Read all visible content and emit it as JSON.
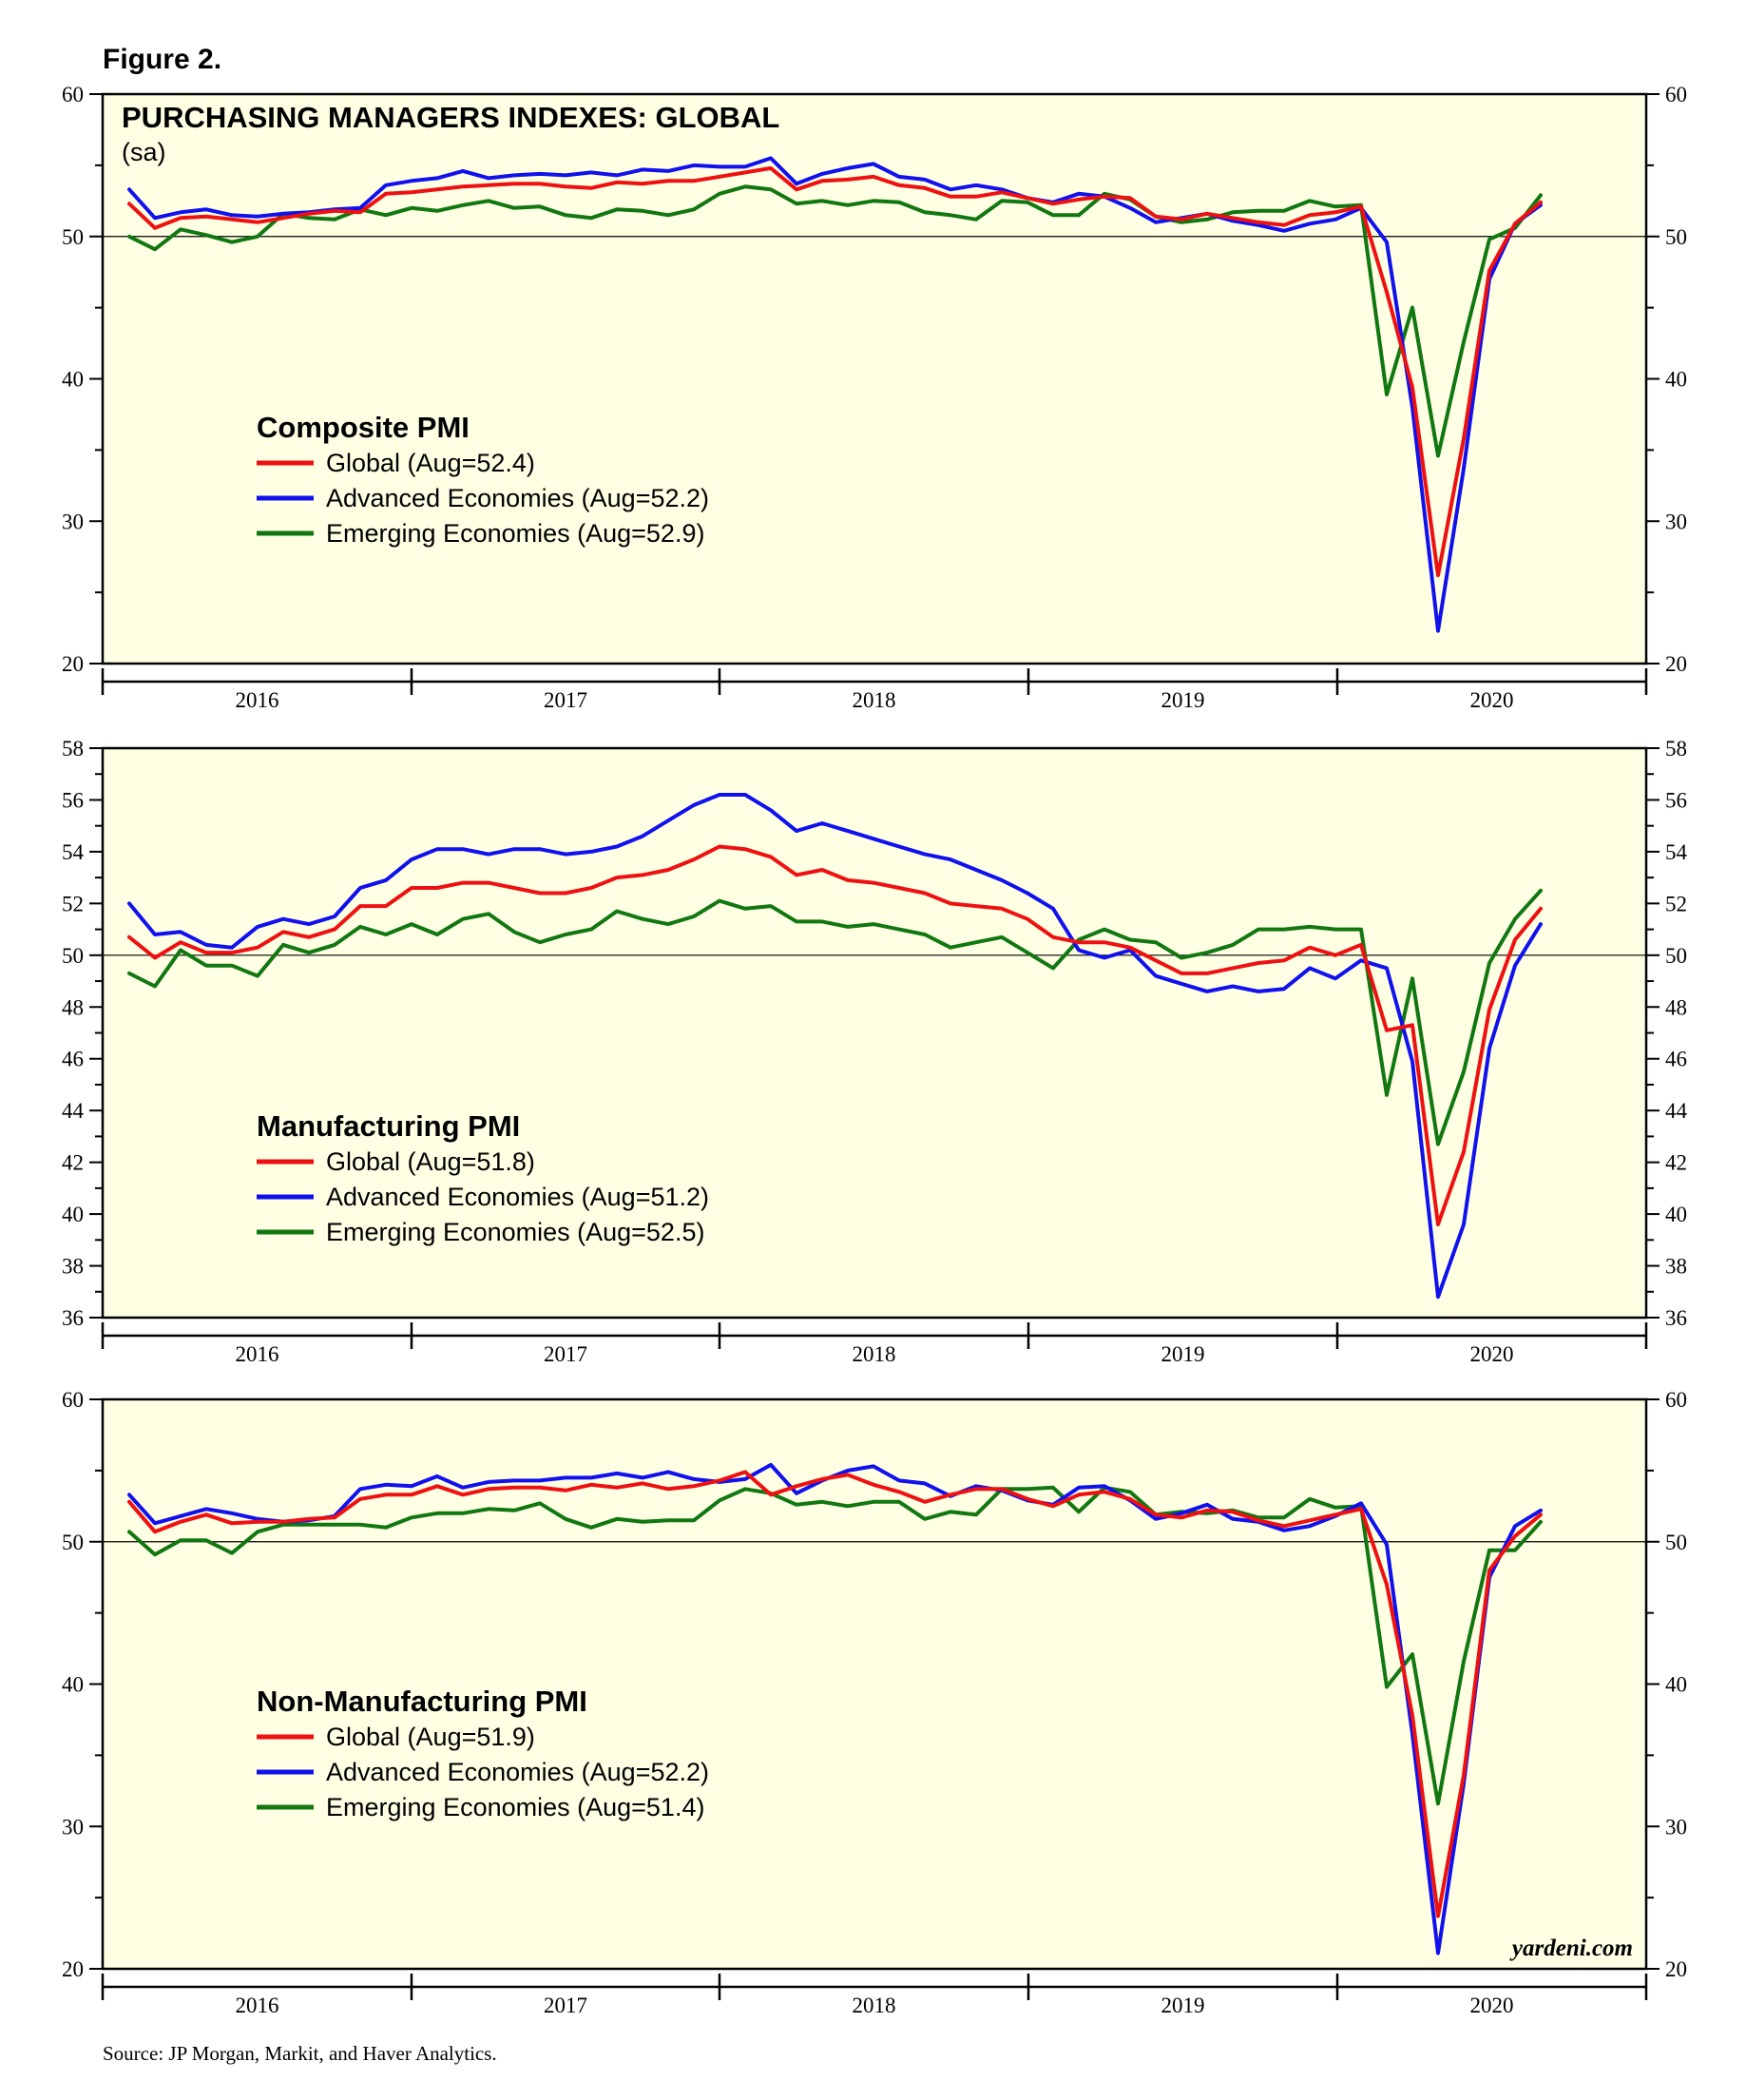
{
  "figure_label": "Figure 2.",
  "source": "Source: JP Morgan, Markit, and Haver Analytics.",
  "colors": {
    "global": "#ee1111",
    "advanced": "#1111ee",
    "emerging": "#117711",
    "panel_bg": "#ffffe4"
  },
  "chart_data": [
    {
      "type": "line",
      "title": "PURCHASING MANAGERS INDEXES: GLOBAL",
      "subtitle": "(sa)",
      "legend_title": "Composite PMI",
      "ylim": [
        20,
        60
      ],
      "yticks": [
        20,
        30,
        40,
        50,
        60
      ],
      "x_tick_labels": [
        "2016",
        "2017",
        "2018",
        "2019",
        "2020"
      ],
      "x_start": "2016-01",
      "watermark": "",
      "series": [
        {
          "name": "Global (Aug=52.4)",
          "key": "global",
          "values": [
            52.3,
            50.6,
            51.3,
            51.4,
            51.2,
            51.0,
            51.3,
            51.6,
            51.8,
            51.7,
            53.0,
            53.1,
            53.3,
            53.5,
            53.6,
            53.7,
            53.7,
            53.5,
            53.4,
            53.8,
            53.7,
            53.9,
            53.9,
            54.2,
            54.5,
            54.8,
            53.3,
            53.9,
            54.0,
            54.2,
            53.6,
            53.4,
            52.8,
            52.8,
            53.1,
            52.7,
            52.3,
            52.6,
            52.8,
            52.7,
            51.4,
            51.2,
            51.6,
            51.3,
            51.0,
            50.8,
            51.5,
            51.7,
            52.1,
            46.1,
            39.4,
            26.2,
            35.8,
            47.6,
            50.9,
            52.4
          ]
        },
        {
          "name": "Advanced Economies (Aug=52.2)",
          "key": "advanced",
          "values": [
            53.3,
            51.3,
            51.7,
            51.9,
            51.5,
            51.4,
            51.6,
            51.7,
            51.9,
            52.0,
            53.6,
            53.9,
            54.1,
            54.6,
            54.1,
            54.3,
            54.4,
            54.3,
            54.5,
            54.3,
            54.7,
            54.6,
            55.0,
            54.9,
            54.9,
            55.5,
            53.7,
            54.4,
            54.8,
            55.1,
            54.2,
            54.0,
            53.3,
            53.6,
            53.3,
            52.7,
            52.4,
            53.0,
            52.8,
            52.0,
            51.0,
            51.3,
            51.6,
            51.1,
            50.8,
            50.4,
            50.9,
            51.2,
            52.0,
            49.6,
            38.0,
            22.3,
            33.7,
            47.0,
            50.9,
            52.2
          ]
        },
        {
          "name": "Emerging Economies (Aug=52.9)",
          "key": "emerging",
          "values": [
            50.0,
            49.1,
            50.5,
            50.1,
            49.6,
            50.0,
            51.6,
            51.3,
            51.2,
            51.9,
            51.5,
            52.0,
            51.8,
            52.2,
            52.5,
            52.0,
            52.1,
            51.5,
            51.3,
            51.9,
            51.8,
            51.5,
            51.9,
            53.0,
            53.5,
            53.3,
            52.3,
            52.5,
            52.2,
            52.5,
            52.4,
            51.7,
            51.5,
            51.2,
            52.5,
            52.4,
            51.5,
            51.5,
            53.0,
            52.6,
            51.4,
            51.0,
            51.2,
            51.7,
            51.8,
            51.8,
            52.5,
            52.1,
            52.2,
            38.9,
            45.0,
            34.6,
            42.6,
            49.8,
            50.6,
            52.9
          ]
        }
      ]
    },
    {
      "type": "line",
      "title": "",
      "subtitle": "",
      "legend_title": "Manufacturing PMI",
      "ylim": [
        36,
        58
      ],
      "yticks": [
        36,
        38,
        40,
        42,
        44,
        46,
        48,
        50,
        52,
        54,
        56,
        58
      ],
      "x_tick_labels": [
        "2016",
        "2017",
        "2018",
        "2019",
        "2020"
      ],
      "x_start": "2016-01",
      "watermark": "",
      "series": [
        {
          "name": "Global (Aug=51.8)",
          "key": "global",
          "values": [
            50.7,
            49.9,
            50.5,
            50.1,
            50.1,
            50.3,
            50.9,
            50.7,
            51.0,
            51.9,
            51.9,
            52.6,
            52.6,
            52.8,
            52.8,
            52.6,
            52.4,
            52.4,
            52.6,
            53.0,
            53.1,
            53.3,
            53.7,
            54.2,
            54.1,
            53.8,
            53.1,
            53.3,
            52.9,
            52.8,
            52.6,
            52.4,
            52.0,
            51.9,
            51.8,
            51.4,
            50.7,
            50.5,
            50.5,
            50.3,
            49.8,
            49.3,
            49.3,
            49.5,
            49.7,
            49.8,
            50.3,
            50.0,
            50.4,
            47.1,
            47.3,
            39.6,
            42.4,
            47.9,
            50.6,
            51.8
          ]
        },
        {
          "name": "Advanced Economies (Aug=51.2)",
          "key": "advanced",
          "values": [
            52.0,
            50.8,
            50.9,
            50.4,
            50.3,
            51.1,
            51.4,
            51.2,
            51.5,
            52.6,
            52.9,
            53.7,
            54.1,
            54.1,
            53.9,
            54.1,
            54.1,
            53.9,
            54.0,
            54.2,
            54.6,
            55.2,
            55.8,
            56.2,
            56.2,
            55.6,
            54.8,
            55.1,
            54.8,
            54.5,
            54.2,
            53.9,
            53.7,
            53.3,
            52.9,
            52.4,
            51.8,
            50.2,
            49.9,
            50.2,
            49.2,
            48.9,
            48.6,
            48.8,
            48.6,
            48.7,
            49.5,
            49.1,
            49.8,
            49.5,
            45.9,
            36.8,
            39.6,
            46.4,
            49.6,
            51.2
          ]
        },
        {
          "name": "Emerging Economies (Aug=52.5)",
          "key": "emerging",
          "values": [
            49.3,
            48.8,
            50.2,
            49.6,
            49.6,
            49.2,
            50.4,
            50.1,
            50.4,
            51.1,
            50.8,
            51.2,
            50.8,
            51.4,
            51.6,
            50.9,
            50.5,
            50.8,
            51.0,
            51.7,
            51.4,
            51.2,
            51.5,
            52.1,
            51.8,
            51.9,
            51.3,
            51.3,
            51.1,
            51.2,
            51.0,
            50.8,
            50.3,
            50.5,
            50.7,
            50.1,
            49.5,
            50.6,
            51.0,
            50.6,
            50.5,
            49.9,
            50.1,
            50.4,
            51.0,
            51.0,
            51.1,
            51.0,
            51.0,
            44.6,
            49.1,
            42.7,
            45.5,
            49.7,
            51.4,
            52.5
          ]
        }
      ]
    },
    {
      "type": "line",
      "title": "",
      "subtitle": "",
      "legend_title": "Non-Manufacturing PMI",
      "ylim": [
        20,
        60
      ],
      "yticks": [
        20,
        30,
        40,
        50,
        60
      ],
      "x_tick_labels": [
        "2016",
        "2017",
        "2018",
        "2019",
        "2020"
      ],
      "x_start": "2016-01",
      "watermark": "yardeni.com",
      "series": [
        {
          "name": "Global (Aug=51.9)",
          "key": "global",
          "values": [
            52.8,
            50.7,
            51.4,
            51.9,
            51.3,
            51.4,
            51.4,
            51.6,
            51.7,
            53.0,
            53.3,
            53.3,
            53.9,
            53.3,
            53.7,
            53.8,
            53.8,
            53.6,
            54.0,
            53.8,
            54.1,
            53.7,
            53.9,
            54.3,
            54.9,
            53.3,
            53.9,
            54.4,
            54.7,
            54.0,
            53.5,
            52.8,
            53.3,
            53.7,
            53.7,
            53.0,
            52.5,
            53.3,
            53.5,
            53.0,
            51.9,
            51.7,
            52.2,
            52.1,
            51.5,
            51.1,
            51.5,
            51.9,
            52.3,
            47.0,
            37.8,
            23.7,
            33.6,
            48.0,
            50.4,
            51.9
          ]
        },
        {
          "name": "Advanced Economies (Aug=52.2)",
          "key": "advanced",
          "values": [
            53.3,
            51.3,
            51.8,
            52.3,
            52.0,
            51.6,
            51.4,
            51.5,
            51.8,
            53.7,
            54.0,
            53.9,
            54.6,
            53.8,
            54.2,
            54.3,
            54.3,
            54.5,
            54.5,
            54.8,
            54.5,
            54.9,
            54.4,
            54.2,
            54.4,
            55.4,
            53.4,
            54.3,
            55.0,
            55.3,
            54.3,
            54.1,
            53.2,
            53.9,
            53.6,
            52.9,
            52.6,
            53.8,
            53.9,
            52.9,
            51.6,
            52.0,
            52.6,
            51.6,
            51.4,
            50.8,
            51.1,
            51.8,
            52.7,
            49.8,
            36.5,
            21.1,
            33.0,
            47.5,
            51.1,
            52.2
          ]
        },
        {
          "name": "Emerging Economies (Aug=51.4)",
          "key": "emerging",
          "values": [
            50.7,
            49.1,
            50.1,
            50.1,
            49.2,
            50.7,
            51.2,
            51.2,
            51.2,
            51.2,
            51.0,
            51.7,
            52.0,
            52.0,
            52.3,
            52.2,
            52.7,
            51.6,
            51.0,
            51.6,
            51.4,
            51.5,
            51.5,
            52.9,
            53.7,
            53.4,
            52.6,
            52.8,
            52.5,
            52.8,
            52.8,
            51.6,
            52.1,
            51.9,
            53.7,
            53.7,
            53.8,
            52.1,
            53.8,
            53.5,
            51.9,
            52.1,
            52.0,
            52.2,
            51.7,
            51.7,
            53.0,
            52.4,
            52.5,
            39.8,
            42.1,
            31.6,
            41.6,
            49.4,
            49.4,
            51.4
          ]
        }
      ]
    }
  ]
}
